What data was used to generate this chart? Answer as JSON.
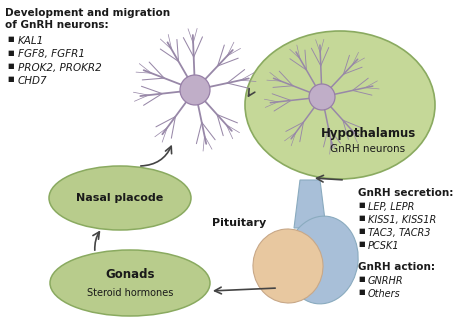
{
  "bg_color": "#ffffff",
  "title_line1": "Development and migration",
  "title_line2": "of GnRH neurons:",
  "dev_genes": [
    "KAL1",
    "FGF8, FGFR1",
    "PROK2, PROKR2",
    "CHD7"
  ],
  "gnrh_secretion_title": "GnRH secretion:",
  "gnrh_secretion_genes": [
    "LEP, LEPR",
    "KISS1, KISS1R",
    "TAC3, TACR3",
    "PCSK1"
  ],
  "gnrh_action_title": "GnRH action:",
  "gnrh_action_genes": [
    "GNRHR",
    "Others"
  ],
  "hypothalamus_label": "Hypothalamus",
  "hypothalamus_sublabel": "GnRH neurons",
  "nasal_label": "Nasal placode",
  "gonads_label": "Gonads",
  "gonads_sublabel": "Steroid hormones",
  "pituitary_label": "Pituitary",
  "ellipse_color": "#b8cc8c",
  "ellipse_edge": "#8aaa60",
  "hypothalamus_ellipse_color": "#c5d898",
  "neuron_body_color": "#c0aec8",
  "neuron_body_edge": "#9880a8",
  "neuron_axon_color": "#9888a8",
  "pituitary_blue": "#a8bfd8",
  "pituitary_peach": "#e8c8a0",
  "arrow_color": "#444444",
  "text_color": "#1a1a1a",
  "gene_color": "#1a1a1a"
}
